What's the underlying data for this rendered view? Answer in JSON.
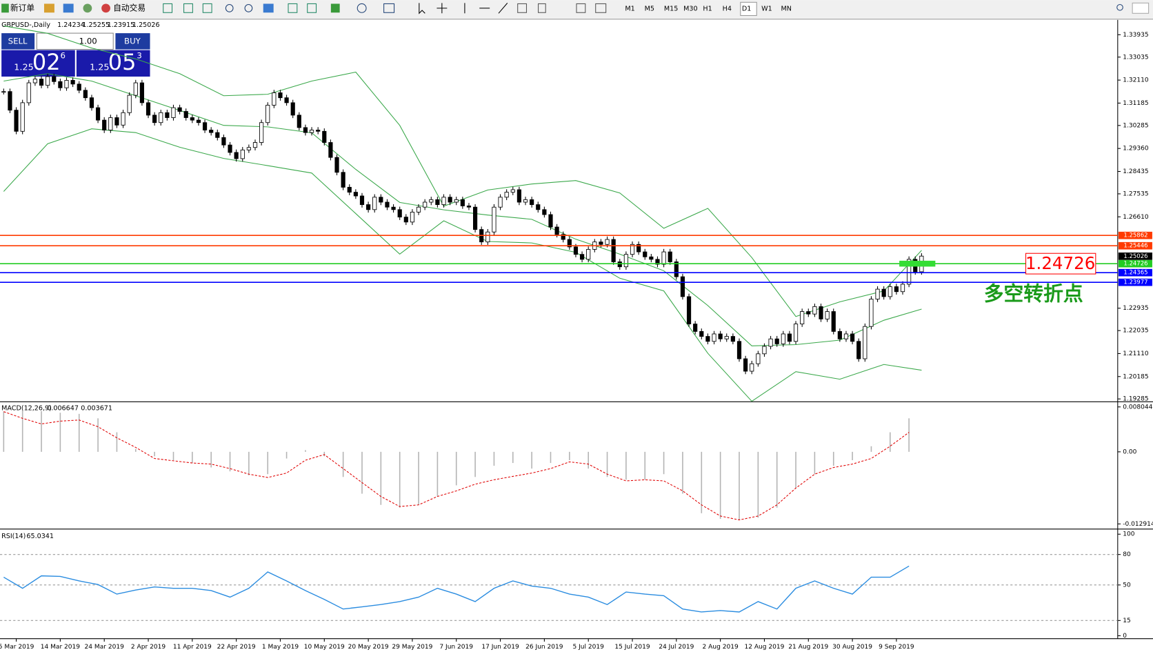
{
  "toolbar": {
    "new_order": "新订单",
    "auto_trading": "自动交易",
    "timeframes": [
      "M1",
      "M5",
      "M15",
      "M30",
      "H1",
      "H4",
      "D1",
      "W1",
      "MN"
    ]
  },
  "trade_panel": {
    "sell": "SELL",
    "buy": "BUY",
    "lot": "1.00",
    "sell_price": {
      "big": "1.25",
      "pips": "02",
      "point": "6"
    },
    "buy_price": {
      "big": "1.25",
      "pips": "05",
      "point": "3"
    }
  },
  "chart_data": [
    {
      "type": "candlestick",
      "title": "GBPUSD-,Daily",
      "ohlc": [
        1.24234,
        1.25255,
        1.23915,
        1.25026
      ],
      "closes": [
        1.3165,
        1.309,
        1.3005,
        1.312,
        1.32,
        1.3215,
        1.319,
        1.3225,
        1.3205,
        1.318,
        1.321,
        1.3195,
        1.317,
        1.314,
        1.31,
        1.305,
        1.301,
        1.306,
        1.303,
        1.308,
        1.315,
        1.32,
        1.312,
        1.307,
        1.304,
        1.308,
        1.306,
        1.31,
        1.3085,
        1.306,
        1.305,
        1.304,
        1.301,
        1.3,
        1.298,
        1.295,
        1.292,
        1.2895,
        1.293,
        1.294,
        1.296,
        1.304,
        1.311,
        1.316,
        1.314,
        1.312,
        1.307,
        1.302,
        1.3,
        1.301,
        1.3005,
        1.296,
        1.29,
        1.284,
        1.278,
        1.276,
        1.2745,
        1.271,
        1.269,
        1.274,
        1.272,
        1.27,
        1.269,
        1.266,
        1.264,
        1.268,
        1.27,
        1.272,
        1.273,
        1.271,
        1.274,
        1.272,
        1.273,
        1.2705,
        1.27,
        1.261,
        1.256,
        1.26,
        1.27,
        1.274,
        1.276,
        1.277,
        1.272,
        1.273,
        1.271,
        1.269,
        1.267,
        1.262,
        1.259,
        1.257,
        1.254,
        1.251,
        1.249,
        1.253,
        1.256,
        1.255,
        1.257,
        1.248,
        1.246,
        1.251,
        1.255,
        1.252,
        1.25,
        1.249,
        1.247,
        1.252,
        1.248,
        1.242,
        1.234,
        1.223,
        1.22,
        1.218,
        1.216,
        1.219,
        1.217,
        1.218,
        1.216,
        1.209,
        1.204,
        1.207,
        1.211,
        1.214,
        1.217,
        1.215,
        1.219,
        1.216,
        1.223,
        1.228,
        1.227,
        1.23,
        1.225,
        1.228,
        1.22,
        1.217,
        1.219,
        1.216,
        1.209,
        1.222,
        1.233,
        1.237,
        1.234,
        1.238,
        1.236,
        1.239,
        1.249,
        1.244,
        1.2503
      ],
      "color_up": "#ffffff",
      "color_down": "#000000",
      "bands": {
        "color": "#3aa84a",
        "x": [
          0,
          7,
          14,
          21,
          28,
          35,
          42,
          49,
          56,
          63,
          70,
          77,
          84,
          91,
          98,
          105,
          112,
          119,
          126,
          133,
          140,
          146
        ],
        "upper": [
          1.3429,
          1.3399,
          1.334,
          1.3296,
          1.3237,
          1.3148,
          1.3154,
          1.3207,
          1.3243,
          1.3029,
          1.2704,
          1.2769,
          1.2793,
          1.2807,
          1.2757,
          1.2615,
          1.2695,
          1.2497,
          1.226,
          1.2319,
          1.2363,
          1.2526
        ],
        "middle": [
          1.3207,
          1.3237,
          1.3207,
          1.3148,
          1.3089,
          1.3029,
          1.3023,
          1.2999,
          1.2852,
          1.2719,
          1.2689,
          1.2668,
          1.2651,
          1.2571,
          1.2511,
          1.2444,
          1.2304,
          1.2142,
          1.2147,
          1.2165,
          1.2245,
          1.229
        ],
        "lower": [
          1.2763,
          1.2955,
          1.3015,
          1.3,
          1.2941,
          1.2896,
          1.2867,
          1.2837,
          1.2674,
          1.2511,
          1.2645,
          1.2562,
          1.2556,
          1.2518,
          1.2414,
          1.2363,
          1.2112,
          1.1919,
          1.2038,
          1.2008,
          1.2067,
          1.2044
        ]
      },
      "hlines": [
        {
          "value": 1.25862,
          "color": "#ff3a00"
        },
        {
          "value": 1.25446,
          "color": "#ff3a00"
        },
        {
          "value": 1.24726,
          "color": "#22cc22"
        },
        {
          "value": 1.24365,
          "color": "#0000ff"
        },
        {
          "value": 1.23977,
          "color": "#0000ff"
        }
      ],
      "last_price": 1.25026,
      "annotation": {
        "value": 1.24726,
        "text": "多空转折点",
        "color": "#ff0000",
        "text_color": "#1a9a1a",
        "box_color": "#33dd33"
      },
      "xlim": [
        -0.585,
        177.2
      ],
      "ylim": [
        1.192,
        1.345
      ],
      "yticks": [
        1.33935,
        1.33035,
        {
          "value": 1.3211,
          "label": "1.32110"
        },
        1.31185,
        1.30285,
        {
          "value": 1.2936,
          "label": "1.29360"
        },
        1.28435,
        1.27535,
        {
          "value": 1.2661,
          "label": "1.26610"
        },
        1.22935,
        1.22035,
        {
          "value": 1.2111,
          "label": "1.21110"
        },
        1.20185,
        1.19285
      ],
      "xticks": [
        {
          "value": 2,
          "label": "5 Mar 2019"
        },
        {
          "value": 9,
          "label": "14 Mar 2019"
        },
        {
          "value": 16,
          "label": "24 Mar 2019"
        },
        {
          "value": 23,
          "label": "2 Apr 2019"
        },
        {
          "value": 30,
          "label": "11 Apr 2019"
        },
        {
          "value": 37,
          "label": "22 Apr 2019"
        },
        {
          "value": 44,
          "label": "1 May 2019"
        },
        {
          "value": 51,
          "label": "10 May 2019"
        },
        {
          "value": 58,
          "label": "20 May 2019"
        },
        {
          "value": 65,
          "label": "29 May 2019"
        },
        {
          "value": 72,
          "label": "7 Jun 2019"
        },
        {
          "value": 79,
          "label": "17 Jun 2019"
        },
        {
          "value": 86,
          "label": "26 Jun 2019"
        },
        {
          "value": 93,
          "label": "5 Jul 2019"
        },
        {
          "value": 100,
          "label": "15 Jul 2019"
        },
        {
          "value": 107,
          "label": "24 Jul 2019"
        },
        {
          "value": 114,
          "label": "2 Aug 2019"
        },
        {
          "value": 121,
          "label": "12 Aug 2019"
        },
        {
          "value": 128,
          "label": "21 Aug 2019"
        },
        {
          "value": 135,
          "label": "30 Aug 2019"
        },
        {
          "value": 142,
          "label": "9 Sep 2019"
        }
      ]
    },
    {
      "type": "macd",
      "title": "MACD(12,26,9)",
      "header_values": [
        0.006647,
        0.003671
      ],
      "hist_color": "#b4b4b4",
      "signal_color": "#e00000",
      "x": [
        0,
        3,
        6,
        9,
        12,
        15,
        18,
        21,
        24,
        27,
        30,
        33,
        36,
        39,
        42,
        45,
        48,
        51,
        54,
        57,
        60,
        63,
        66,
        69,
        72,
        75,
        78,
        81,
        84,
        87,
        90,
        93,
        96,
        99,
        102,
        105,
        108,
        111,
        114,
        117,
        120,
        123,
        126,
        129,
        132,
        135,
        138,
        141,
        144
      ],
      "histogram": [
        0.0072,
        0.0074,
        0.0073,
        0.007,
        0.0068,
        0.006,
        0.0035,
        0.0005,
        -0.0008,
        -0.0015,
        -0.002,
        -0.0028,
        -0.0035,
        -0.0042,
        -0.004,
        -0.0012,
        0.0003,
        -0.0008,
        -0.0045,
        -0.0075,
        -0.0095,
        -0.01,
        -0.0095,
        -0.008,
        -0.006,
        -0.0045,
        -0.0025,
        -0.002,
        -0.003,
        -0.002,
        -0.0015,
        -0.003,
        -0.0045,
        -0.005,
        -0.005,
        -0.004,
        -0.0075,
        -0.011,
        -0.012,
        -0.0122,
        -0.0118,
        -0.01,
        -0.0065,
        -0.004,
        -0.0025,
        -0.0015,
        0.001,
        0.0035,
        0.006
      ],
      "signal": [
        0.0072,
        0.006,
        0.005,
        0.0055,
        0.0057,
        0.0045,
        0.0025,
        0.0008,
        -0.0012,
        -0.0016,
        -0.002,
        -0.0022,
        -0.003,
        -0.004,
        -0.0046,
        -0.0038,
        -0.0015,
        -0.0005,
        -0.003,
        -0.0055,
        -0.008,
        -0.0098,
        -0.0095,
        -0.008,
        -0.007,
        -0.0058,
        -0.005,
        -0.0044,
        -0.0038,
        -0.003,
        -0.0018,
        -0.0022,
        -0.004,
        -0.0052,
        -0.005,
        -0.0052,
        -0.007,
        -0.0095,
        -0.0115,
        -0.0122,
        -0.0115,
        -0.0095,
        -0.0065,
        -0.004,
        -0.0028,
        -0.0022,
        -0.0012,
        0.001,
        0.0035
      ],
      "ylim": [
        -0.01357,
        0.0087
      ],
      "yticks": [
        0.008044,
        {
          "value": 0,
          "label": "0.00"
        },
        -0.012914
      ]
    },
    {
      "type": "rsi",
      "title": "RSI(14)",
      "header_values": [
        65.0341
      ],
      "color": "#2a8ce0",
      "x": [
        0,
        3,
        6,
        9,
        12,
        15,
        18,
        21,
        24,
        27,
        30,
        33,
        36,
        39,
        42,
        45,
        48,
        51,
        54,
        57,
        60,
        63,
        66,
        69,
        72,
        75,
        78,
        81,
        84,
        87,
        90,
        93,
        96,
        99,
        102,
        105,
        108,
        111,
        114,
        117,
        120,
        123,
        126,
        129,
        132,
        135,
        138,
        141,
        144
      ],
      "values": [
        57.7,
        46.7,
        59,
        58.4,
        54,
        50.4,
        41,
        45,
        48,
        46.7,
        46.7,
        44.5,
        38,
        46.7,
        62.8,
        54,
        44.5,
        35.8,
        26.3,
        28.5,
        30.7,
        33.6,
        38,
        46.7,
        41,
        33.6,
        46.7,
        54,
        48.9,
        46.7,
        41,
        38,
        30.7,
        43,
        41,
        39.4,
        26.3,
        23.4,
        24.8,
        23.4,
        33.6,
        26.3,
        46.7,
        54,
        46.7,
        41,
        57.7,
        57.7,
        68.6
      ],
      "levels": [
        80,
        50,
        15
      ],
      "ylim": [
        -2.9,
        103.6
      ],
      "yticks": [
        100,
        80,
        50,
        15,
        0
      ]
    }
  ]
}
